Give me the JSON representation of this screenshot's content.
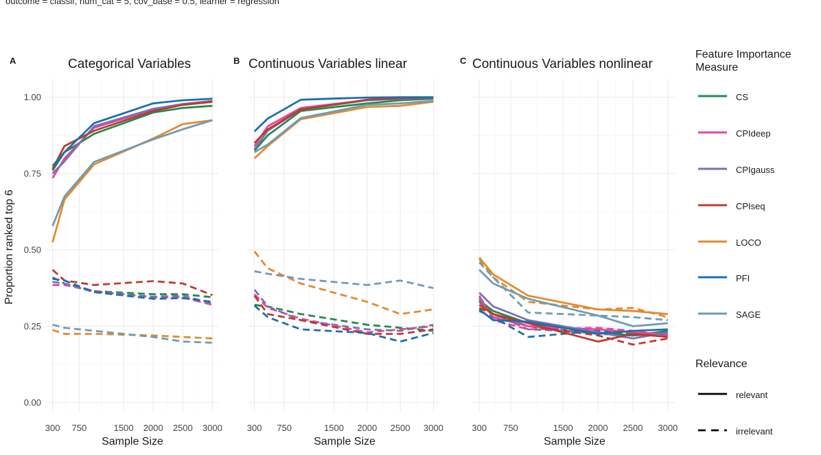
{
  "subtitle": "outcome = classif, num_cat = 5, cov_base = 0.5, learner = regression",
  "ylabel": "Proportion ranked top 6",
  "xlabel": "Sample Size",
  "legend": {
    "title_line1": "Feature Importance",
    "title_line2": "Measure",
    "measures": [
      {
        "name": "CS",
        "color": "#238b4e"
      },
      {
        "name": "CPIdeep",
        "color": "#e7479b"
      },
      {
        "name": "CPIgauss",
        "color": "#7b6fb4"
      },
      {
        "name": "CPIseq",
        "color": "#c0392b"
      },
      {
        "name": "LOCO",
        "color": "#e58a2d"
      },
      {
        "name": "PFI",
        "color": "#1b6fae"
      },
      {
        "name": "SAGE",
        "color": "#6e9bb3"
      }
    ],
    "relevance_title": "Relevance",
    "relevance": [
      {
        "name": "relevant",
        "linetype": "solid"
      },
      {
        "name": "irrelevant",
        "linetype": "dashed"
      }
    ]
  },
  "chart_data": {
    "type": "line",
    "x": [
      300,
      500,
      1000,
      2000,
      2500,
      3000
    ],
    "xticks": [
      300,
      750,
      1500,
      2000,
      2500,
      3000
    ],
    "xlim": [
      200,
      3100
    ],
    "yticks": [
      0,
      0.25,
      0.5,
      0.75,
      1
    ],
    "ytick_labels": [
      "0.00",
      "0.25",
      "0.50",
      "0.75",
      "1.00"
    ],
    "ylim": [
      -0.03,
      1.06
    ],
    "panels": [
      {
        "letter": "A",
        "title": "Categorical Variables",
        "series": [
          {
            "measure": "CS",
            "relevance": "relevant",
            "values": [
              0.76,
              0.82,
              0.88,
              0.95,
              0.965,
              0.972
            ]
          },
          {
            "measure": "CPIdeep",
            "relevance": "relevant",
            "values": [
              0.735,
              0.8,
              0.9,
              0.96,
              0.975,
              0.985
            ]
          },
          {
            "measure": "CPIgauss",
            "relevance": "relevant",
            "values": [
              0.75,
              0.79,
              0.905,
              0.962,
              0.978,
              0.988
            ]
          },
          {
            "measure": "CPIseq",
            "relevance": "relevant",
            "values": [
              0.765,
              0.84,
              0.89,
              0.955,
              0.975,
              0.985
            ]
          },
          {
            "measure": "LOCO",
            "relevance": "relevant",
            "values": [
              0.525,
              0.665,
              0.78,
              0.865,
              0.912,
              0.925
            ]
          },
          {
            "measure": "PFI",
            "relevance": "relevant",
            "values": [
              0.775,
              0.82,
              0.915,
              0.98,
              0.99,
              0.995
            ]
          },
          {
            "measure": "SAGE",
            "relevance": "relevant",
            "values": [
              0.578,
              0.675,
              0.788,
              0.862,
              0.895,
              0.925
            ]
          },
          {
            "measure": "CS",
            "relevance": "irrelevant",
            "values": [
              0.41,
              0.39,
              0.365,
              0.355,
              0.355,
              0.345
            ]
          },
          {
            "measure": "CPIdeep",
            "relevance": "irrelevant",
            "values": [
              0.385,
              0.385,
              0.365,
              0.345,
              0.345,
              0.32
            ]
          },
          {
            "measure": "CPIgauss",
            "relevance": "irrelevant",
            "values": [
              0.395,
              0.39,
              0.362,
              0.347,
              0.35,
              0.325
            ]
          },
          {
            "measure": "CPIseq",
            "relevance": "irrelevant",
            "values": [
              0.435,
              0.4,
              0.385,
              0.398,
              0.39,
              0.352
            ]
          },
          {
            "measure": "LOCO",
            "relevance": "irrelevant",
            "values": [
              0.238,
              0.225,
              0.225,
              0.22,
              0.215,
              0.21
            ]
          },
          {
            "measure": "PFI",
            "relevance": "irrelevant",
            "values": [
              0.405,
              0.4,
              0.362,
              0.34,
              0.342,
              0.33
            ]
          },
          {
            "measure": "SAGE",
            "relevance": "irrelevant",
            "values": [
              0.255,
              0.245,
              0.235,
              0.215,
              0.2,
              0.196
            ]
          }
        ]
      },
      {
        "letter": "B",
        "title": "Continuous Variables linear",
        "series": [
          {
            "measure": "CS",
            "relevance": "relevant",
            "values": [
              0.825,
              0.875,
              0.955,
              0.98,
              0.99,
              0.995
            ]
          },
          {
            "measure": "CPIdeep",
            "relevance": "relevant",
            "values": [
              0.84,
              0.905,
              0.965,
              0.99,
              0.995,
              0.998
            ]
          },
          {
            "measure": "CPIgauss",
            "relevance": "relevant",
            "values": [
              0.83,
              0.89,
              0.96,
              0.99,
              0.996,
              0.998
            ]
          },
          {
            "measure": "CPIseq",
            "relevance": "relevant",
            "values": [
              0.85,
              0.895,
              0.96,
              0.992,
              0.997,
              0.999
            ]
          },
          {
            "measure": "LOCO",
            "relevance": "relevant",
            "values": [
              0.8,
              0.84,
              0.928,
              0.968,
              0.972,
              0.985
            ]
          },
          {
            "measure": "PFI",
            "relevance": "relevant",
            "values": [
              0.888,
              0.93,
              0.992,
              0.999,
              1.0,
              1.0
            ]
          },
          {
            "measure": "SAGE",
            "relevance": "relevant",
            "values": [
              0.82,
              0.845,
              0.932,
              0.975,
              0.98,
              0.988
            ]
          },
          {
            "measure": "CS",
            "relevance": "irrelevant",
            "values": [
              0.32,
              0.315,
              0.29,
              0.255,
              0.245,
              0.235
            ]
          },
          {
            "measure": "CPIdeep",
            "relevance": "irrelevant",
            "values": [
              0.355,
              0.31,
              0.275,
              0.23,
              0.24,
              0.25
            ]
          },
          {
            "measure": "CPIgauss",
            "relevance": "irrelevant",
            "values": [
              0.37,
              0.315,
              0.27,
              0.24,
              0.235,
              0.255
            ]
          },
          {
            "measure": "CPIseq",
            "relevance": "irrelevant",
            "values": [
              0.35,
              0.29,
              0.27,
              0.225,
              0.225,
              0.24
            ]
          },
          {
            "measure": "LOCO",
            "relevance": "irrelevant",
            "values": [
              0.495,
              0.44,
              0.39,
              0.33,
              0.29,
              0.305
            ]
          },
          {
            "measure": "PFI",
            "relevance": "irrelevant",
            "values": [
              0.318,
              0.28,
              0.24,
              0.228,
              0.2,
              0.228
            ]
          },
          {
            "measure": "SAGE",
            "relevance": "irrelevant",
            "values": [
              0.43,
              0.422,
              0.405,
              0.385,
              0.4,
              0.375
            ]
          }
        ]
      },
      {
        "letter": "C",
        "title": "Continuous Variables nonlinear",
        "series": [
          {
            "measure": "CS",
            "relevance": "relevant",
            "values": [
              0.335,
              0.3,
              0.26,
              0.23,
              0.22,
              0.235
            ]
          },
          {
            "measure": "CPIdeep",
            "relevance": "relevant",
            "values": [
              0.34,
              0.28,
              0.25,
              0.24,
              0.23,
              0.225
            ]
          },
          {
            "measure": "CPIgauss",
            "relevance": "relevant",
            "values": [
              0.36,
              0.315,
              0.27,
              0.23,
              0.21,
              0.23
            ]
          },
          {
            "measure": "CPIseq",
            "relevance": "relevant",
            "values": [
              0.32,
              0.29,
              0.26,
              0.2,
              0.225,
              0.215
            ]
          },
          {
            "measure": "LOCO",
            "relevance": "relevant",
            "values": [
              0.475,
              0.42,
              0.35,
              0.305,
              0.3,
              0.29
            ]
          },
          {
            "measure": "PFI",
            "relevance": "relevant",
            "values": [
              0.305,
              0.27,
              0.265,
              0.225,
              0.235,
              0.24
            ]
          },
          {
            "measure": "SAGE",
            "relevance": "relevant",
            "values": [
              0.435,
              0.39,
              0.34,
              0.285,
              0.25,
              0.26
            ]
          },
          {
            "measure": "CS",
            "relevance": "irrelevant",
            "values": [
              0.33,
              0.29,
              0.25,
              0.225,
              0.22,
              0.225
            ]
          },
          {
            "measure": "CPIdeep",
            "relevance": "irrelevant",
            "values": [
              0.35,
              0.27,
              0.24,
              0.245,
              0.235,
              0.22
            ]
          },
          {
            "measure": "CPIgauss",
            "relevance": "irrelevant",
            "values": [
              0.345,
              0.29,
              0.24,
              0.23,
              0.22,
              0.23
            ]
          },
          {
            "measure": "CPIseq",
            "relevance": "irrelevant",
            "values": [
              0.31,
              0.29,
              0.25,
              0.22,
              0.19,
              0.21
            ]
          },
          {
            "measure": "LOCO",
            "relevance": "irrelevant",
            "values": [
              0.47,
              0.41,
              0.33,
              0.305,
              0.31,
              0.28
            ]
          },
          {
            "measure": "PFI",
            "relevance": "irrelevant",
            "values": [
              0.3,
              0.28,
              0.215,
              0.235,
              0.225,
              0.225
            ]
          },
          {
            "measure": "SAGE",
            "relevance": "irrelevant",
            "values": [
              0.46,
              0.41,
              0.295,
              0.285,
              0.28,
              0.27
            ]
          }
        ]
      }
    ]
  }
}
